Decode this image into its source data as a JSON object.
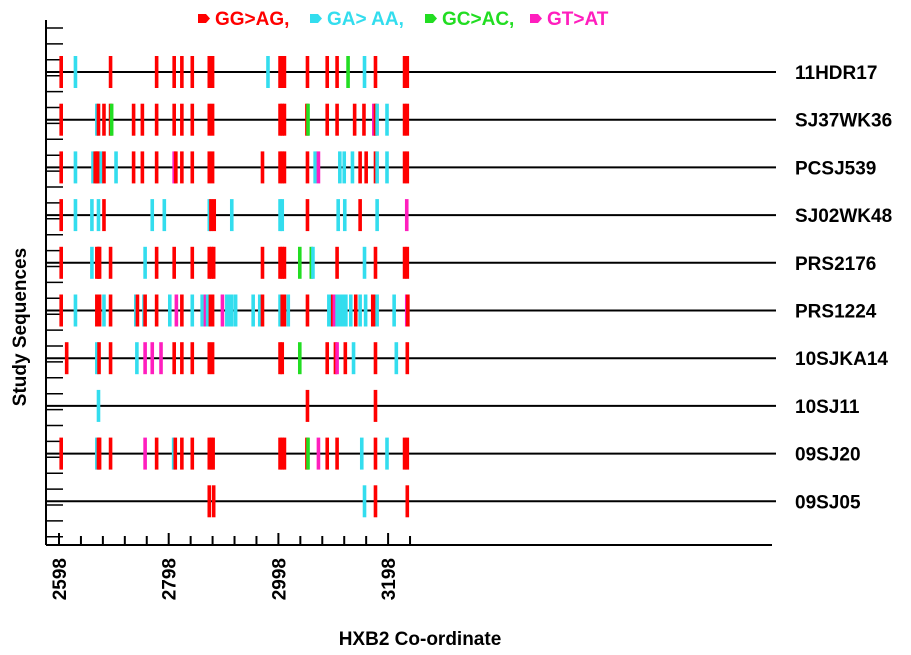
{
  "chart_data": {
    "type": "scatter",
    "subtype": "mutation-highlighter",
    "xlabel": "HXB2 Co-ordinate",
    "ylabel": "Study Sequences",
    "xlim": [
      2598,
      3238
    ],
    "x_ticks": [
      2598,
      2798,
      2998,
      3198
    ],
    "legend": {
      "placement": "top-center",
      "entries": [
        {
          "key": "GG_AG",
          "label": "GG>AG,",
          "color": "#ff0000"
        },
        {
          "key": "GA_AA",
          "label": "GA> AA,",
          "color": "#33ddee"
        },
        {
          "key": "GC_AC",
          "label": "GC>AC,",
          "color": "#22dd22"
        },
        {
          "key": "GT_AT",
          "label": "GT>AT",
          "color": "#ff1ebe"
        }
      ]
    },
    "sequences": [
      {
        "name": "11HDR17",
        "marks": [
          {
            "x": 2602,
            "t": "GG_AG"
          },
          {
            "x": 2628,
            "t": "GA_AA"
          },
          {
            "x": 2692,
            "t": "GG_AG"
          },
          {
            "x": 2776,
            "t": "GG_AG"
          },
          {
            "x": 2808,
            "t": "GG_AG"
          },
          {
            "x": 2822,
            "t": "GG_AG"
          },
          {
            "x": 2841,
            "t": "GG_AG"
          },
          {
            "x": 2872,
            "t": "GG_AG"
          },
          {
            "x": 2878,
            "t": "GG_AG"
          },
          {
            "x": 2979,
            "t": "GA_AA"
          },
          {
            "x": 3001,
            "t": "GG_AG"
          },
          {
            "x": 3005,
            "t": "GG_AG"
          },
          {
            "x": 3009,
            "t": "GG_AG"
          },
          {
            "x": 3051,
            "t": "GG_AG"
          },
          {
            "x": 3087,
            "t": "GG_AG"
          },
          {
            "x": 3105,
            "t": "GG_AG"
          },
          {
            "x": 3125,
            "t": "GC_AC"
          },
          {
            "x": 3155,
            "t": "GA_AA"
          },
          {
            "x": 3175,
            "t": "GG_AG"
          },
          {
            "x": 3228,
            "t": "GG_AG"
          },
          {
            "x": 3233,
            "t": "GG_AG"
          }
        ]
      },
      {
        "name": "SJ37WK36",
        "marks": [
          {
            "x": 2602,
            "t": "GG_AG"
          },
          {
            "x": 2667,
            "t": "GA_AA"
          },
          {
            "x": 2670,
            "t": "GG_AG"
          },
          {
            "x": 2680,
            "t": "GG_AG"
          },
          {
            "x": 2692,
            "t": "GG_AG"
          },
          {
            "x": 2694,
            "t": "GC_AC"
          },
          {
            "x": 2734,
            "t": "GG_AG"
          },
          {
            "x": 2750,
            "t": "GG_AG"
          },
          {
            "x": 2776,
            "t": "GG_AG"
          },
          {
            "x": 2808,
            "t": "GG_AG"
          },
          {
            "x": 2822,
            "t": "GG_AG"
          },
          {
            "x": 2841,
            "t": "GG_AG"
          },
          {
            "x": 2872,
            "t": "GG_AG"
          },
          {
            "x": 2878,
            "t": "GG_AG"
          },
          {
            "x": 3001,
            "t": "GG_AG"
          },
          {
            "x": 3005,
            "t": "GG_AG"
          },
          {
            "x": 3009,
            "t": "GG_AG"
          },
          {
            "x": 3050,
            "t": "GG_AG"
          },
          {
            "x": 3052,
            "t": "GC_AC"
          },
          {
            "x": 3087,
            "t": "GG_AG"
          },
          {
            "x": 3105,
            "t": "GG_AG"
          },
          {
            "x": 3137,
            "t": "GG_AG"
          },
          {
            "x": 3154,
            "t": "GG_AG"
          },
          {
            "x": 3172,
            "t": "GT_AT"
          },
          {
            "x": 3175,
            "t": "GG_AG"
          },
          {
            "x": 3178,
            "t": "GA_AA"
          },
          {
            "x": 3196,
            "t": "GA_AA"
          },
          {
            "x": 3228,
            "t": "GG_AG"
          },
          {
            "x": 3233,
            "t": "GG_AG"
          }
        ]
      },
      {
        "name": "PCSJ539",
        "marks": [
          {
            "x": 2602,
            "t": "GG_AG"
          },
          {
            "x": 2628,
            "t": "GA_AA"
          },
          {
            "x": 2660,
            "t": "GA_AA"
          },
          {
            "x": 2664,
            "t": "GG_AG"
          },
          {
            "x": 2667,
            "t": "GG_AG"
          },
          {
            "x": 2670,
            "t": "GG_AG"
          },
          {
            "x": 2675,
            "t": "GA_AA"
          },
          {
            "x": 2680,
            "t": "GG_AG"
          },
          {
            "x": 2702,
            "t": "GA_AA"
          },
          {
            "x": 2734,
            "t": "GG_AG"
          },
          {
            "x": 2750,
            "t": "GG_AG"
          },
          {
            "x": 2776,
            "t": "GG_AG"
          },
          {
            "x": 2808,
            "t": "GT_AT"
          },
          {
            "x": 2811,
            "t": "GG_AG"
          },
          {
            "x": 2822,
            "t": "GG_AG"
          },
          {
            "x": 2841,
            "t": "GG_AG"
          },
          {
            "x": 2872,
            "t": "GG_AG"
          },
          {
            "x": 2878,
            "t": "GG_AG"
          },
          {
            "x": 2969,
            "t": "GG_AG"
          },
          {
            "x": 3001,
            "t": "GG_AG"
          },
          {
            "x": 3005,
            "t": "GG_AG"
          },
          {
            "x": 3009,
            "t": "GG_AG"
          },
          {
            "x": 3051,
            "t": "GG_AG"
          },
          {
            "x": 3065,
            "t": "GA_AA"
          },
          {
            "x": 3071,
            "t": "GT_AT"
          },
          {
            "x": 3110,
            "t": "GA_AA"
          },
          {
            "x": 3118,
            "t": "GA_AA"
          },
          {
            "x": 3133,
            "t": "GA_AA"
          },
          {
            "x": 3147,
            "t": "GG_AG"
          },
          {
            "x": 3158,
            "t": "GG_AG"
          },
          {
            "x": 3175,
            "t": "GG_AG"
          },
          {
            "x": 3178,
            "t": "GA_AA"
          },
          {
            "x": 3196,
            "t": "GA_AA"
          },
          {
            "x": 3228,
            "t": "GG_AG"
          },
          {
            "x": 3233,
            "t": "GG_AG"
          }
        ]
      },
      {
        "name": "SJ02WK48",
        "marks": [
          {
            "x": 2602,
            "t": "GG_AG"
          },
          {
            "x": 2628,
            "t": "GA_AA"
          },
          {
            "x": 2658,
            "t": "GA_AA"
          },
          {
            "x": 2670,
            "t": "GA_AA"
          },
          {
            "x": 2680,
            "t": "GG_AG"
          },
          {
            "x": 2768,
            "t": "GA_AA"
          },
          {
            "x": 2790,
            "t": "GA_AA"
          },
          {
            "x": 2872,
            "t": "GA_AA"
          },
          {
            "x": 2875,
            "t": "GG_AG"
          },
          {
            "x": 2881,
            "t": "GG_AG"
          },
          {
            "x": 2913,
            "t": "GA_AA"
          },
          {
            "x": 3001,
            "t": "GA_AA"
          },
          {
            "x": 3005,
            "t": "GA_AA"
          },
          {
            "x": 3051,
            "t": "GG_AG"
          },
          {
            "x": 3107,
            "t": "GA_AA"
          },
          {
            "x": 3119,
            "t": "GA_AA"
          },
          {
            "x": 3147,
            "t": "GG_AG"
          },
          {
            "x": 3178,
            "t": "GA_AA"
          },
          {
            "x": 3232,
            "t": "GT_AT"
          }
        ]
      },
      {
        "name": "PRS2176",
        "marks": [
          {
            "x": 2602,
            "t": "GG_AG"
          },
          {
            "x": 2658,
            "t": "GA_AA"
          },
          {
            "x": 2667,
            "t": "GG_AG"
          },
          {
            "x": 2670,
            "t": "GG_AG"
          },
          {
            "x": 2672,
            "t": "GG_AG"
          },
          {
            "x": 2692,
            "t": "GG_AG"
          },
          {
            "x": 2755,
            "t": "GA_AA"
          },
          {
            "x": 2776,
            "t": "GG_AG"
          },
          {
            "x": 2808,
            "t": "GG_AG"
          },
          {
            "x": 2841,
            "t": "GG_AG"
          },
          {
            "x": 2872,
            "t": "GG_AG"
          },
          {
            "x": 2876,
            "t": "GG_AG"
          },
          {
            "x": 2880,
            "t": "GG_AG"
          },
          {
            "x": 2969,
            "t": "GG_AG"
          },
          {
            "x": 3001,
            "t": "GG_AG"
          },
          {
            "x": 3005,
            "t": "GG_AG"
          },
          {
            "x": 3009,
            "t": "GG_AG"
          },
          {
            "x": 3037,
            "t": "GC_AC"
          },
          {
            "x": 3058,
            "t": "GC_AC"
          },
          {
            "x": 3061,
            "t": "GA_AA"
          },
          {
            "x": 3105,
            "t": "GG_AG"
          },
          {
            "x": 3155,
            "t": "GA_AA"
          },
          {
            "x": 3175,
            "t": "GG_AG"
          },
          {
            "x": 3228,
            "t": "GG_AG"
          },
          {
            "x": 3233,
            "t": "GG_AG"
          }
        ]
      },
      {
        "name": "PRS1224",
        "marks": [
          {
            "x": 2602,
            "t": "GG_AG"
          },
          {
            "x": 2628,
            "t": "GA_AA"
          },
          {
            "x": 2667,
            "t": "GG_AG"
          },
          {
            "x": 2670,
            "t": "GG_AG"
          },
          {
            "x": 2672,
            "t": "GG_AG"
          },
          {
            "x": 2680,
            "t": "GA_AA"
          },
          {
            "x": 2692,
            "t": "GG_AG"
          },
          {
            "x": 2738,
            "t": "GA_AA"
          },
          {
            "x": 2741,
            "t": "GG_AG"
          },
          {
            "x": 2753,
            "t": "GA_AA"
          },
          {
            "x": 2755,
            "t": "GG_AG"
          },
          {
            "x": 2776,
            "t": "GG_AG"
          },
          {
            "x": 2800,
            "t": "GA_AA"
          },
          {
            "x": 2812,
            "t": "GT_AT"
          },
          {
            "x": 2822,
            "t": "GG_AG"
          },
          {
            "x": 2841,
            "t": "GA_AA"
          },
          {
            "x": 2859,
            "t": "GA_AA"
          },
          {
            "x": 2865,
            "t": "GT_AT"
          },
          {
            "x": 2869,
            "t": "GA_AA"
          },
          {
            "x": 2874,
            "t": "GG_AG"
          },
          {
            "x": 2878,
            "t": "GG_AG"
          },
          {
            "x": 2896,
            "t": "GT_AT"
          },
          {
            "x": 2904,
            "t": "GA_AA"
          },
          {
            "x": 2909,
            "t": "GA_AA"
          },
          {
            "x": 2913,
            "t": "GA_AA"
          },
          {
            "x": 2920,
            "t": "GA_AA"
          },
          {
            "x": 2952,
            "t": "GA_AA"
          },
          {
            "x": 2964,
            "t": "GA_AA"
          },
          {
            "x": 2969,
            "t": "GG_AG"
          },
          {
            "x": 3001,
            "t": "GA_AA"
          },
          {
            "x": 3005,
            "t": "GG_AG"
          },
          {
            "x": 3009,
            "t": "GG_AG"
          },
          {
            "x": 3016,
            "t": "GA_AA"
          },
          {
            "x": 3051,
            "t": "GG_AG"
          },
          {
            "x": 3090,
            "t": "GA_AA"
          },
          {
            "x": 3093,
            "t": "GA_AA"
          },
          {
            "x": 3097,
            "t": "GG_AG"
          },
          {
            "x": 3100,
            "t": "GT_AT"
          },
          {
            "x": 3105,
            "t": "GA_AA"
          },
          {
            "x": 3110,
            "t": "GA_AA"
          },
          {
            "x": 3116,
            "t": "GA_AA"
          },
          {
            "x": 3121,
            "t": "GA_AA"
          },
          {
            "x": 3130,
            "t": "GA_AA"
          },
          {
            "x": 3139,
            "t": "GG_AG"
          },
          {
            "x": 3147,
            "t": "GA_AA"
          },
          {
            "x": 3157,
            "t": "GA_AA"
          },
          {
            "x": 3170,
            "t": "GG_AG"
          },
          {
            "x": 3175,
            "t": "GG_AG"
          },
          {
            "x": 3178,
            "t": "GA_AA"
          },
          {
            "x": 3209,
            "t": "GA_AA"
          },
          {
            "x": 3232,
            "t": "GT_AT"
          },
          {
            "x": 3234,
            "t": "GG_AG"
          }
        ]
      },
      {
        "name": "10SJKA14",
        "marks": [
          {
            "x": 2612,
            "t": "GG_AG"
          },
          {
            "x": 2667,
            "t": "GA_AA"
          },
          {
            "x": 2671,
            "t": "GG_AG"
          },
          {
            "x": 2692,
            "t": "GG_AG"
          },
          {
            "x": 2740,
            "t": "GA_AA"
          },
          {
            "x": 2755,
            "t": "GT_AT"
          },
          {
            "x": 2768,
            "t": "GT_AT"
          },
          {
            "x": 2784,
            "t": "GT_AT"
          },
          {
            "x": 2808,
            "t": "GG_AG"
          },
          {
            "x": 2822,
            "t": "GG_AG"
          },
          {
            "x": 2841,
            "t": "GG_AG"
          },
          {
            "x": 2872,
            "t": "GG_AG"
          },
          {
            "x": 2878,
            "t": "GG_AG"
          },
          {
            "x": 3001,
            "t": "GG_AG"
          },
          {
            "x": 3005,
            "t": "GG_AG"
          },
          {
            "x": 3037,
            "t": "GC_AC"
          },
          {
            "x": 3087,
            "t": "GG_AG"
          },
          {
            "x": 3102,
            "t": "GG_AG"
          },
          {
            "x": 3105,
            "t": "GT_AT"
          },
          {
            "x": 3120,
            "t": "GG_AG"
          },
          {
            "x": 3135,
            "t": "GA_AA"
          },
          {
            "x": 3175,
            "t": "GG_AG"
          },
          {
            "x": 3213,
            "t": "GA_AA"
          },
          {
            "x": 3233,
            "t": "GG_AG"
          }
        ]
      },
      {
        "name": "10SJ11",
        "marks": [
          {
            "x": 2670,
            "t": "GA_AA"
          },
          {
            "x": 3051,
            "t": "GG_AG"
          },
          {
            "x": 3175,
            "t": "GG_AG"
          }
        ]
      },
      {
        "name": "09SJ20",
        "marks": [
          {
            "x": 2602,
            "t": "GG_AG"
          },
          {
            "x": 2667,
            "t": "GA_AA"
          },
          {
            "x": 2670,
            "t": "GG_AG"
          },
          {
            "x": 2672,
            "t": "GG_AG"
          },
          {
            "x": 2692,
            "t": "GG_AG"
          },
          {
            "x": 2755,
            "t": "GT_AT"
          },
          {
            "x": 2776,
            "t": "GG_AG"
          },
          {
            "x": 2807,
            "t": "GA_AA"
          },
          {
            "x": 2810,
            "t": "GG_AG"
          },
          {
            "x": 2822,
            "t": "GG_AG"
          },
          {
            "x": 2841,
            "t": "GG_AG"
          },
          {
            "x": 2872,
            "t": "GG_AG"
          },
          {
            "x": 2876,
            "t": "GG_AG"
          },
          {
            "x": 2879,
            "t": "GG_AG"
          },
          {
            "x": 3001,
            "t": "GG_AG"
          },
          {
            "x": 3005,
            "t": "GG_AG"
          },
          {
            "x": 3009,
            "t": "GG_AG"
          },
          {
            "x": 3050,
            "t": "GG_AG"
          },
          {
            "x": 3052,
            "t": "GC_AC"
          },
          {
            "x": 3071,
            "t": "GT_AT"
          },
          {
            "x": 3087,
            "t": "GG_AG"
          },
          {
            "x": 3105,
            "t": "GG_AG"
          },
          {
            "x": 3150,
            "t": "GA_AA"
          },
          {
            "x": 3175,
            "t": "GG_AG"
          },
          {
            "x": 3196,
            "t": "GA_AA"
          },
          {
            "x": 3228,
            "t": "GG_AG"
          },
          {
            "x": 3233,
            "t": "GG_AG"
          }
        ]
      },
      {
        "name": "09SJ05",
        "marks": [
          {
            "x": 2872,
            "t": "GG_AG"
          },
          {
            "x": 2880,
            "t": "GG_AG"
          },
          {
            "x": 3155,
            "t": "GA_AA"
          },
          {
            "x": 3175,
            "t": "GG_AG"
          },
          {
            "x": 3233,
            "t": "GG_AG"
          }
        ]
      }
    ]
  }
}
